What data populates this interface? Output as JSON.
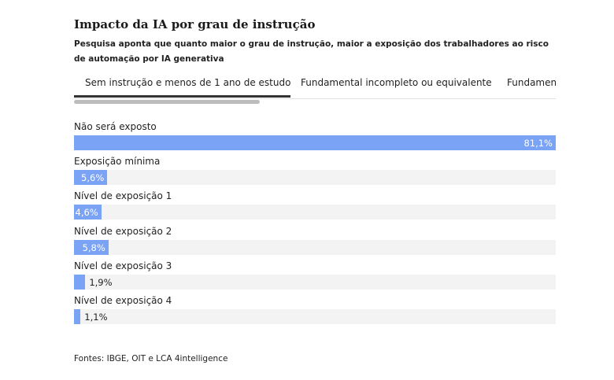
{
  "title": "Impacto da IA por grau de instrução",
  "subtitle": "Pesquisa aponta que quanto maior o grau de instrução, maior a exposição dos trabalhadores ao risco de automação por IA generativa",
  "tabs": [
    {
      "label": "Sem instrução e menos de 1 ano de estudo",
      "active": true
    },
    {
      "label": "Fundamental incompleto ou equivalente",
      "active": false
    },
    {
      "label": "Fundamen",
      "active": false
    }
  ],
  "source": "Fontes: IBGE, OIT e LCA 4intelligence",
  "colors": {
    "bar": "#7aa2f5",
    "track": "#f3f3f3"
  },
  "chart_data": {
    "type": "bar",
    "orientation": "horizontal",
    "categories": [
      "Não será exposto",
      "Exposição mínima",
      "Nível de exposição 1",
      "Nível de exposição 2",
      "Nível de exposição 3",
      "Nível de exposição 4"
    ],
    "values": [
      81.1,
      5.6,
      4.6,
      5.8,
      1.9,
      1.1
    ],
    "value_labels": [
      "81,1%",
      "5,6%",
      "4,6%",
      "5,8%",
      "1,9%",
      "1,1%"
    ],
    "xlim": [
      0,
      81.1
    ]
  }
}
